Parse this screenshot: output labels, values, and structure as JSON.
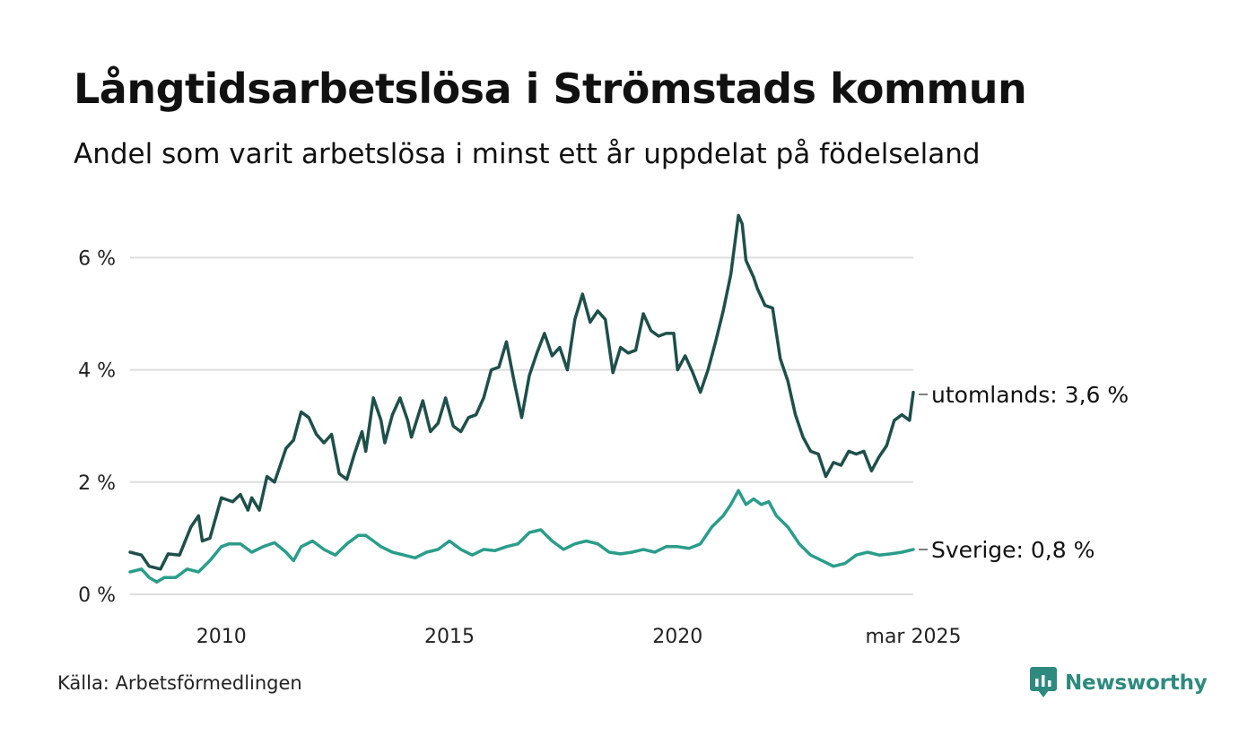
{
  "title": "Långtidsarbetslösa i Strömstads kommun",
  "subtitle": "Andel som varit arbetslösa i minst ett år uppdelat på födelseland",
  "source": "Källa: Arbetsförmedlingen",
  "brand": "Newsworthy",
  "colors": {
    "utomlands": "#1f4f4a",
    "sverige": "#2a9d8a",
    "grid": "#dddddd",
    "brand": "#2e8a7e"
  },
  "chart_data": {
    "type": "line",
    "title": "Långtidsarbetslösa i Strömstads kommun",
    "subtitle": "Andel som varit arbetslösa i minst ett år uppdelat på födelseland",
    "xlabel": "",
    "ylabel": "",
    "ylim": [
      0,
      6.8
    ],
    "xlim": [
      "2008-01",
      "2025-03"
    ],
    "y_ticks": [
      0,
      2,
      4,
      6
    ],
    "y_tick_labels": [
      "0 %",
      "2 %",
      "4 %",
      "6 %"
    ],
    "x_ticks": [
      "2010-01",
      "2015-01",
      "2020-01",
      "2025-03"
    ],
    "x_tick_labels": [
      "2010",
      "2015",
      "2020",
      "mar 2025"
    ],
    "grid": true,
    "legend": "direct labels at line ends",
    "series": [
      {
        "key": "utomlands",
        "end_label": "utomlands: 3,6 %",
        "points": [
          [
            "2008-01",
            0.75
          ],
          [
            "2008-04",
            0.7
          ],
          [
            "2008-06",
            0.5
          ],
          [
            "2008-09",
            0.45
          ],
          [
            "2008-11",
            0.72
          ],
          [
            "2009-02",
            0.7
          ],
          [
            "2009-05",
            1.2
          ],
          [
            "2009-07",
            1.4
          ],
          [
            "2009-08",
            0.95
          ],
          [
            "2009-10",
            1.0
          ],
          [
            "2010-01",
            1.72
          ],
          [
            "2010-04",
            1.65
          ],
          [
            "2010-06",
            1.78
          ],
          [
            "2010-08",
            1.5
          ],
          [
            "2010-09",
            1.72
          ],
          [
            "2010-11",
            1.5
          ],
          [
            "2011-01",
            2.1
          ],
          [
            "2011-03",
            2.0
          ],
          [
            "2011-06",
            2.6
          ],
          [
            "2011-08",
            2.75
          ],
          [
            "2011-10",
            3.25
          ],
          [
            "2011-12",
            3.15
          ],
          [
            "2012-02",
            2.85
          ],
          [
            "2012-04",
            2.7
          ],
          [
            "2012-06",
            2.85
          ],
          [
            "2012-08",
            2.15
          ],
          [
            "2012-10",
            2.05
          ],
          [
            "2012-12",
            2.5
          ],
          [
            "2013-02",
            2.9
          ],
          [
            "2013-03",
            2.55
          ],
          [
            "2013-05",
            3.5
          ],
          [
            "2013-07",
            3.1
          ],
          [
            "2013-08",
            2.7
          ],
          [
            "2013-10",
            3.2
          ],
          [
            "2013-12",
            3.5
          ],
          [
            "2014-02",
            3.1
          ],
          [
            "2014-03",
            2.8
          ],
          [
            "2014-06",
            3.45
          ],
          [
            "2014-08",
            2.9
          ],
          [
            "2014-10",
            3.05
          ],
          [
            "2014-12",
            3.5
          ],
          [
            "2015-02",
            3.0
          ],
          [
            "2015-04",
            2.9
          ],
          [
            "2015-06",
            3.15
          ],
          [
            "2015-08",
            3.2
          ],
          [
            "2015-10",
            3.5
          ],
          [
            "2015-12",
            4.0
          ],
          [
            "2016-02",
            4.05
          ],
          [
            "2016-04",
            4.5
          ],
          [
            "2016-06",
            3.8
          ],
          [
            "2016-08",
            3.15
          ],
          [
            "2016-10",
            3.9
          ],
          [
            "2016-12",
            4.3
          ],
          [
            "2017-02",
            4.65
          ],
          [
            "2017-04",
            4.25
          ],
          [
            "2017-06",
            4.4
          ],
          [
            "2017-08",
            4.0
          ],
          [
            "2017-10",
            4.9
          ],
          [
            "2017-12",
            5.35
          ],
          [
            "2018-02",
            4.85
          ],
          [
            "2018-04",
            5.05
          ],
          [
            "2018-06",
            4.9
          ],
          [
            "2018-08",
            3.95
          ],
          [
            "2018-10",
            4.4
          ],
          [
            "2018-12",
            4.3
          ],
          [
            "2019-02",
            4.35
          ],
          [
            "2019-04",
            5.0
          ],
          [
            "2019-06",
            4.7
          ],
          [
            "2019-08",
            4.6
          ],
          [
            "2019-10",
            4.65
          ],
          [
            "2019-12",
            4.65
          ],
          [
            "2020-01",
            4.0
          ],
          [
            "2020-03",
            4.25
          ],
          [
            "2020-05",
            3.95
          ],
          [
            "2020-07",
            3.6
          ],
          [
            "2020-09",
            4.0
          ],
          [
            "2020-11",
            4.5
          ],
          [
            "2021-01",
            5.05
          ],
          [
            "2021-03",
            5.7
          ],
          [
            "2021-05",
            6.75
          ],
          [
            "2021-06",
            6.6
          ],
          [
            "2021-07",
            5.95
          ],
          [
            "2021-09",
            5.65
          ],
          [
            "2021-10",
            5.45
          ],
          [
            "2021-12",
            5.15
          ],
          [
            "2022-02",
            5.1
          ],
          [
            "2022-04",
            4.2
          ],
          [
            "2022-06",
            3.8
          ],
          [
            "2022-08",
            3.2
          ],
          [
            "2022-10",
            2.8
          ],
          [
            "2022-12",
            2.55
          ],
          [
            "2023-02",
            2.5
          ],
          [
            "2023-04",
            2.1
          ],
          [
            "2023-06",
            2.35
          ],
          [
            "2023-08",
            2.3
          ],
          [
            "2023-10",
            2.55
          ],
          [
            "2023-12",
            2.5
          ],
          [
            "2024-02",
            2.55
          ],
          [
            "2024-04",
            2.2
          ],
          [
            "2024-06",
            2.45
          ],
          [
            "2024-08",
            2.65
          ],
          [
            "2024-10",
            3.1
          ],
          [
            "2024-12",
            3.2
          ],
          [
            "2025-02",
            3.1
          ],
          [
            "2025-03",
            3.6
          ]
        ]
      },
      {
        "key": "sverige",
        "end_label": "Sverige: 0,8 %",
        "points": [
          [
            "2008-01",
            0.4
          ],
          [
            "2008-04",
            0.45
          ],
          [
            "2008-06",
            0.3
          ],
          [
            "2008-08",
            0.22
          ],
          [
            "2008-10",
            0.3
          ],
          [
            "2009-01",
            0.3
          ],
          [
            "2009-04",
            0.45
          ],
          [
            "2009-07",
            0.4
          ],
          [
            "2009-10",
            0.6
          ],
          [
            "2010-01",
            0.85
          ],
          [
            "2010-03",
            0.9
          ],
          [
            "2010-06",
            0.9
          ],
          [
            "2010-09",
            0.75
          ],
          [
            "2010-12",
            0.85
          ],
          [
            "2011-03",
            0.92
          ],
          [
            "2011-06",
            0.75
          ],
          [
            "2011-08",
            0.6
          ],
          [
            "2011-10",
            0.85
          ],
          [
            "2012-01",
            0.95
          ],
          [
            "2012-04",
            0.8
          ],
          [
            "2012-07",
            0.7
          ],
          [
            "2012-10",
            0.9
          ],
          [
            "2013-01",
            1.05
          ],
          [
            "2013-03",
            1.05
          ],
          [
            "2013-05",
            0.95
          ],
          [
            "2013-07",
            0.85
          ],
          [
            "2013-10",
            0.75
          ],
          [
            "2014-01",
            0.7
          ],
          [
            "2014-04",
            0.65
          ],
          [
            "2014-07",
            0.75
          ],
          [
            "2014-10",
            0.8
          ],
          [
            "2015-01",
            0.95
          ],
          [
            "2015-04",
            0.8
          ],
          [
            "2015-07",
            0.7
          ],
          [
            "2015-10",
            0.8
          ],
          [
            "2016-01",
            0.78
          ],
          [
            "2016-04",
            0.85
          ],
          [
            "2016-07",
            0.9
          ],
          [
            "2016-10",
            1.1
          ],
          [
            "2017-01",
            1.15
          ],
          [
            "2017-04",
            0.95
          ],
          [
            "2017-07",
            0.8
          ],
          [
            "2017-10",
            0.9
          ],
          [
            "2018-01",
            0.95
          ],
          [
            "2018-04",
            0.9
          ],
          [
            "2018-07",
            0.75
          ],
          [
            "2018-10",
            0.72
          ],
          [
            "2019-01",
            0.75
          ],
          [
            "2019-04",
            0.8
          ],
          [
            "2019-07",
            0.75
          ],
          [
            "2019-10",
            0.85
          ],
          [
            "2020-01",
            0.85
          ],
          [
            "2020-04",
            0.82
          ],
          [
            "2020-07",
            0.9
          ],
          [
            "2020-10",
            1.2
          ],
          [
            "2021-01",
            1.4
          ],
          [
            "2021-03",
            1.6
          ],
          [
            "2021-05",
            1.85
          ],
          [
            "2021-07",
            1.6
          ],
          [
            "2021-09",
            1.7
          ],
          [
            "2021-11",
            1.6
          ],
          [
            "2022-01",
            1.65
          ],
          [
            "2022-03",
            1.4
          ],
          [
            "2022-06",
            1.2
          ],
          [
            "2022-09",
            0.9
          ],
          [
            "2022-12",
            0.7
          ],
          [
            "2023-03",
            0.6
          ],
          [
            "2023-06",
            0.5
          ],
          [
            "2023-09",
            0.55
          ],
          [
            "2023-12",
            0.7
          ],
          [
            "2024-03",
            0.75
          ],
          [
            "2024-06",
            0.7
          ],
          [
            "2024-09",
            0.72
          ],
          [
            "2024-12",
            0.75
          ],
          [
            "2025-03",
            0.8
          ]
        ]
      }
    ]
  }
}
